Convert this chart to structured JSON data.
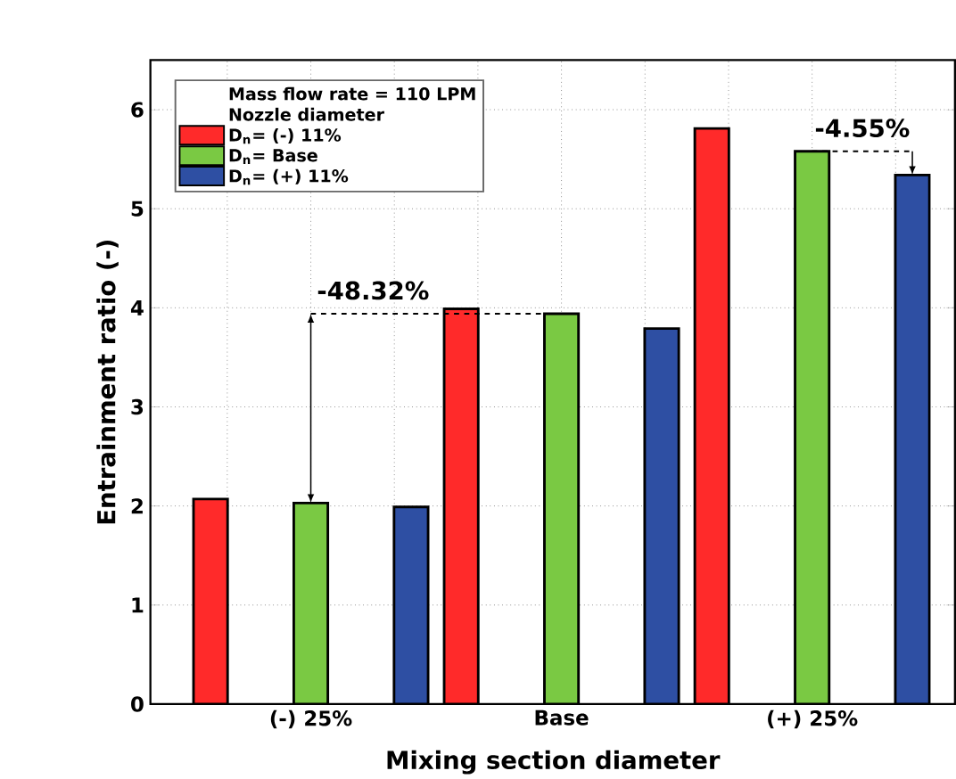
{
  "chart_data": {
    "type": "bar",
    "xlabel": "Mixing section  diameter",
    "ylabel": "Entrainment ratio (-)",
    "legend_title": "Nozzle diameter",
    "categories": [
      "(-) 25%",
      "Base",
      "(+) 25%"
    ],
    "series": [
      {
        "name": "D$_{n}$= (-) 11%",
        "color": "#ff2a2a",
        "values": [
          2.07,
          3.99,
          5.81
        ]
      },
      {
        "name": "D$_{n}$= Base",
        "color": "#7ac943",
        "values": [
          2.03,
          3.94,
          5.58
        ]
      },
      {
        "name": "D$_{n}$= (+) 11%",
        "color": "#2e4fa3",
        "values": [
          1.99,
          3.79,
          5.34
        ]
      }
    ],
    "ylim": [
      0,
      6.5
    ],
    "yticks": [
      0,
      1,
      2,
      3,
      4,
      5,
      6
    ],
    "grid": true,
    "legend": "top left",
    "annotations": [
      "Mass flow rate = 110 LPM",
      {
        "text": "-48.32%",
        "x": "Base",
        "y": 3.94
      },
      {
        "text": "-4.55%",
        "x": "(+) 25%",
        "y": 5.58
      }
    ]
  }
}
